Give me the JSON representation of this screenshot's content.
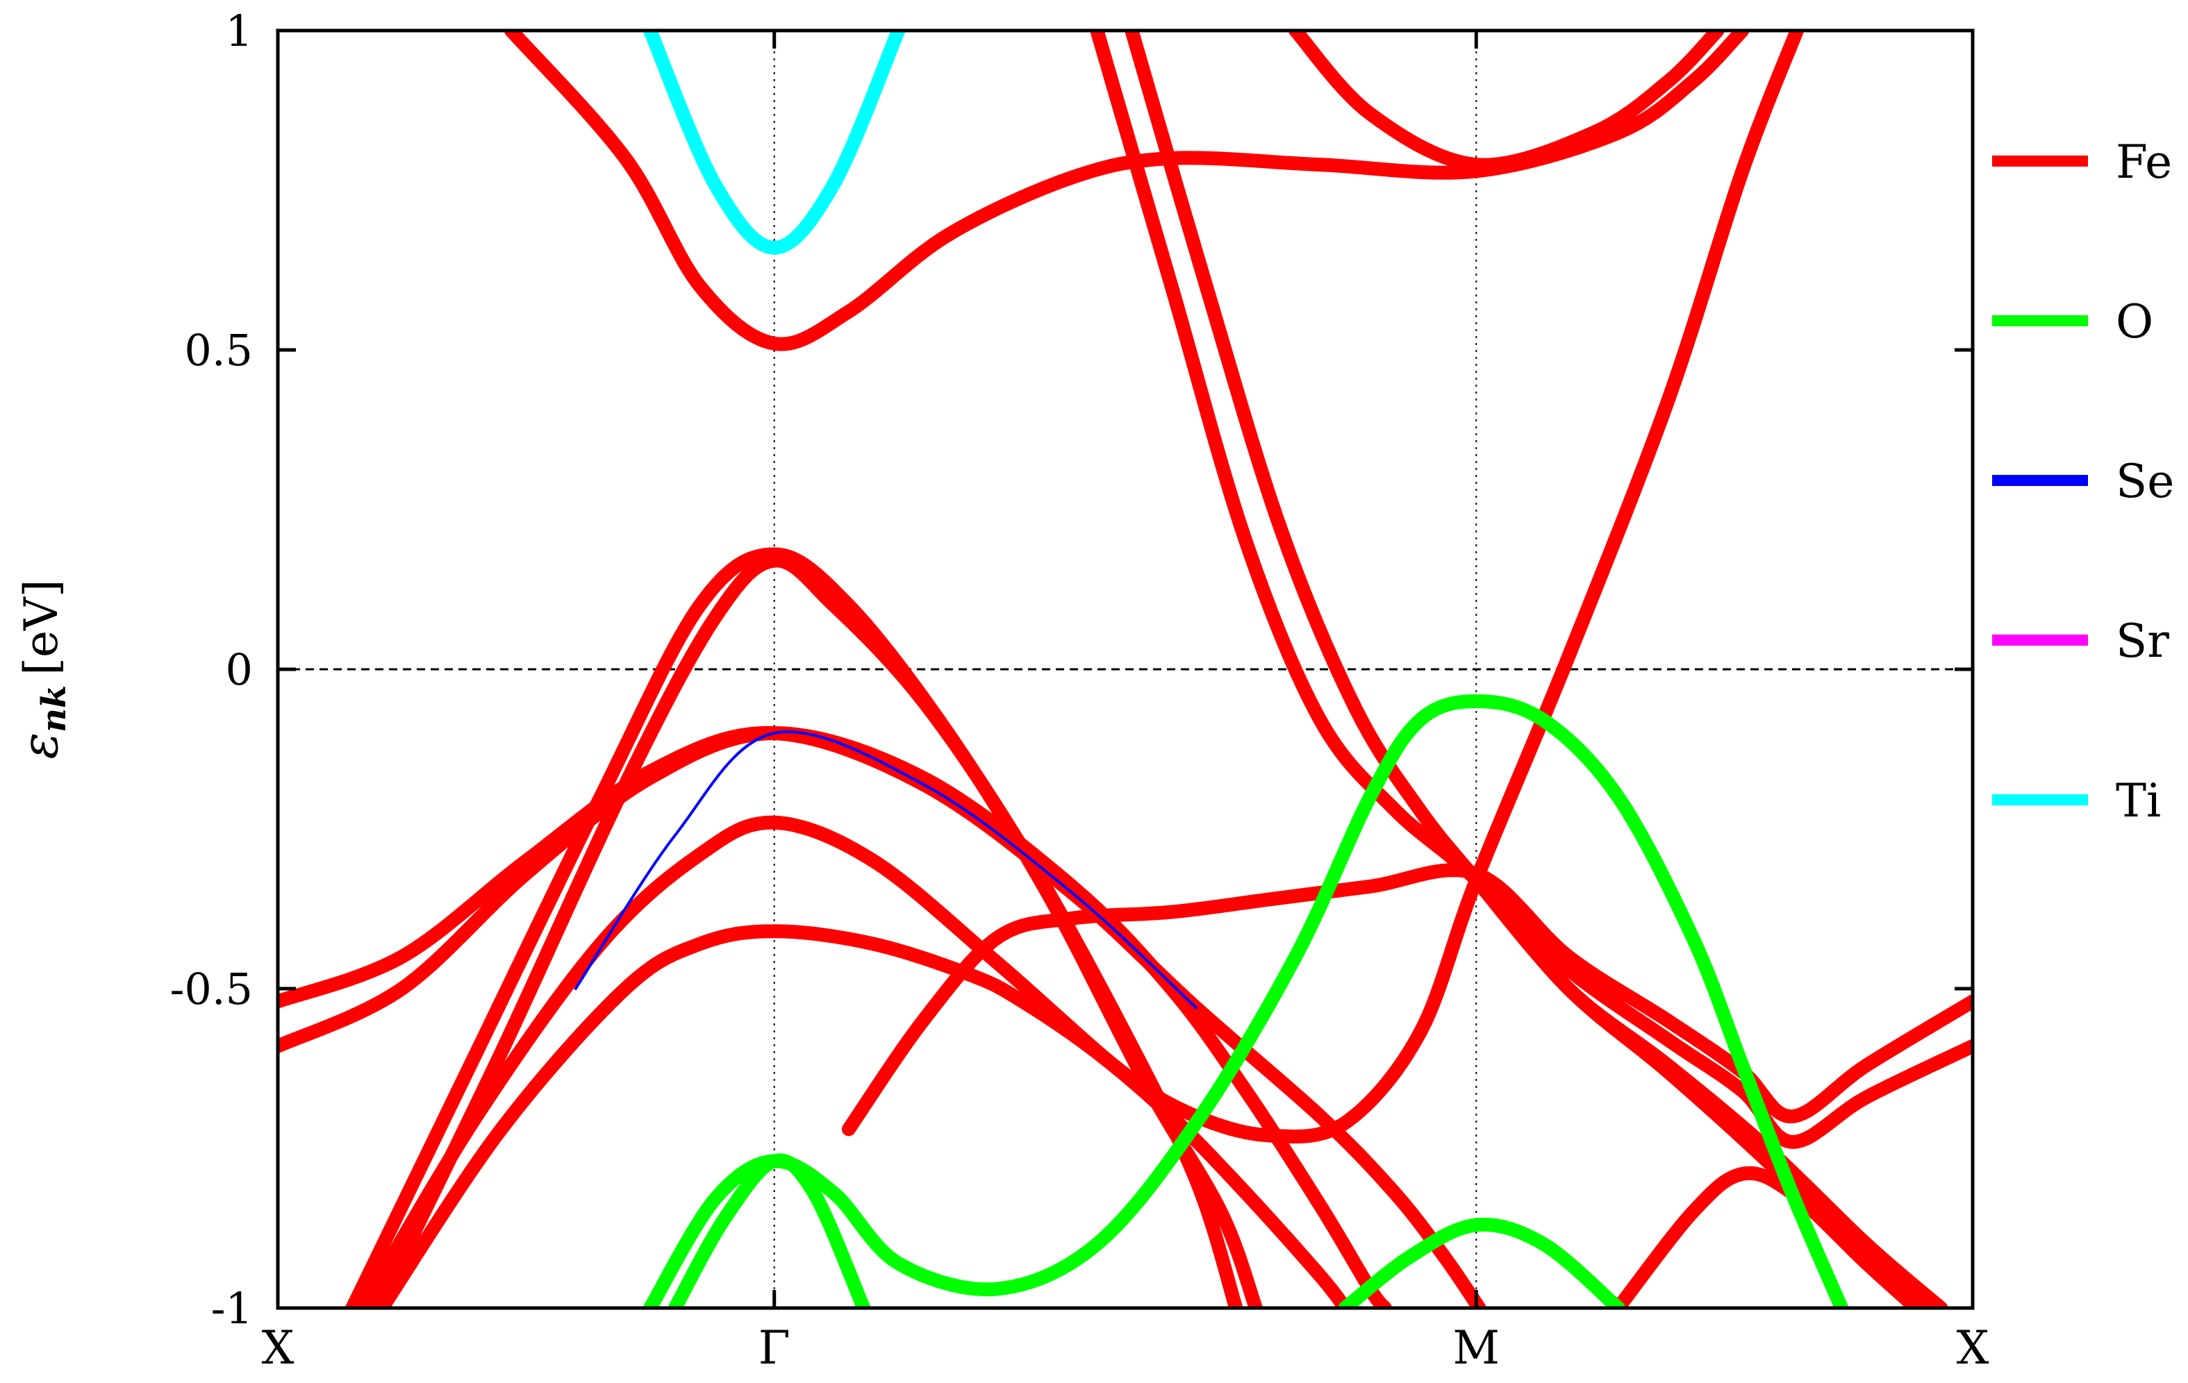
{
  "chart_data": {
    "type": "line",
    "title": "",
    "xlabel": "",
    "ylabel": "ε",
    "ylabel_sub": "nk",
    "ylabel_unit": "[eV]",
    "x_path_ticks": [
      {
        "label": "X",
        "x": 0
      },
      {
        "label": "Γ",
        "x": 1
      },
      {
        "label": "M",
        "x": 2.414
      },
      {
        "label": "X",
        "x": 3.414
      }
    ],
    "xlim": [
      0,
      3.414
    ],
    "ylim": [
      -1,
      1
    ],
    "yticks": [
      -1,
      -0.5,
      0,
      0.5,
      1
    ],
    "ytick_labels": [
      "-1",
      "-0.5",
      "0",
      "0.5",
      "1"
    ],
    "fermi_level": 0,
    "grid": "dotted vertical lines at high-symmetry points",
    "legend_position": "right, outside plot",
    "legend": [
      {
        "name": "Fe",
        "color": "#ff0000"
      },
      {
        "name": "O",
        "color": "#00ff00"
      },
      {
        "name": "Se",
        "color": "#0000ff"
      },
      {
        "name": "Sr",
        "color": "#ff00ff"
      },
      {
        "name": "Ti",
        "color": "#00ffff"
      }
    ],
    "series": [
      {
        "orbital": "Fe",
        "color": "#ff0000",
        "points": [
          [
            0,
            -0.52
          ],
          [
            0.25,
            -0.45
          ],
          [
            0.5,
            -0.3
          ],
          [
            0.75,
            -0.16
          ],
          [
            1,
            -0.1
          ],
          [
            1.3,
            -0.18
          ],
          [
            1.6,
            -0.35
          ],
          [
            1.85,
            -0.53
          ],
          [
            2.1,
            -0.7
          ],
          [
            2.25,
            -0.82
          ],
          [
            2.35,
            -0.92
          ],
          [
            2.42,
            -1.0
          ]
        ]
      },
      {
        "orbital": "Fe",
        "color": "#ff0000",
        "points": [
          [
            0,
            -0.59
          ],
          [
            0.25,
            -0.5
          ],
          [
            0.5,
            -0.32
          ],
          [
            0.75,
            -0.17
          ],
          [
            1,
            -0.1
          ],
          [
            1.3,
            -0.17
          ],
          [
            1.6,
            -0.34
          ],
          [
            1.8,
            -0.5
          ],
          [
            1.95,
            -0.66
          ],
          [
            2.1,
            -0.84
          ],
          [
            2.2,
            -0.97
          ],
          [
            2.23,
            -1.0
          ]
        ]
      },
      {
        "orbital": "Fe",
        "color": "#ff0000",
        "points": [
          [
            0.15,
            -1.0
          ],
          [
            0.4,
            -0.6
          ],
          [
            0.65,
            -0.2
          ],
          [
            0.85,
            0.1
          ],
          [
            1,
            0.18
          ],
          [
            1.15,
            0.1
          ],
          [
            1.35,
            -0.1
          ],
          [
            1.55,
            -0.35
          ],
          [
            1.75,
            -0.65
          ],
          [
            1.9,
            -0.85
          ],
          [
            1.97,
            -1.0
          ]
        ]
      },
      {
        "orbital": "Fe",
        "color": "#ff0000",
        "points": [
          [
            0.2,
            -1.0
          ],
          [
            0.45,
            -0.6
          ],
          [
            0.7,
            -0.18
          ],
          [
            0.88,
            0.08
          ],
          [
            1,
            0.17
          ],
          [
            1.12,
            0.1
          ],
          [
            1.3,
            -0.05
          ],
          [
            1.5,
            -0.28
          ],
          [
            1.7,
            -0.56
          ],
          [
            1.85,
            -0.8
          ],
          [
            1.93,
            -1.0
          ]
        ]
      },
      {
        "orbital": "Fe",
        "color": "#ff0000",
        "points": [
          [
            0.17,
            -1.0
          ],
          [
            0.4,
            -0.7
          ],
          [
            0.65,
            -0.43
          ],
          [
            0.85,
            -0.29
          ],
          [
            1,
            -0.24
          ],
          [
            1.2,
            -0.3
          ],
          [
            1.45,
            -0.46
          ],
          [
            1.7,
            -0.63
          ],
          [
            1.85,
            -0.7
          ],
          [
            2,
            -0.73
          ],
          [
            2.15,
            -0.71
          ],
          [
            2.3,
            -0.57
          ],
          [
            2.414,
            -0.33
          ],
          [
            2.6,
            0.02
          ],
          [
            2.8,
            0.42
          ],
          [
            2.95,
            0.78
          ],
          [
            3.06,
            1.0
          ]
        ]
      },
      {
        "orbital": "Fe",
        "color": "#ff0000",
        "points": [
          [
            0.21,
            -1.0
          ],
          [
            0.45,
            -0.72
          ],
          [
            0.7,
            -0.5
          ],
          [
            0.85,
            -0.43
          ],
          [
            1,
            -0.41
          ],
          [
            1.2,
            -0.43
          ],
          [
            1.4,
            -0.48
          ],
          [
            1.5,
            -0.52
          ],
          [
            1.65,
            -0.6
          ],
          [
            1.8,
            -0.7
          ],
          [
            1.95,
            -0.82
          ],
          [
            2.1,
            -0.95
          ],
          [
            2.15,
            -1.0
          ]
        ]
      },
      {
        "orbital": "Fe",
        "color": "#ff0000",
        "points": [
          [
            1.15,
            -0.72
          ],
          [
            1.3,
            -0.55
          ],
          [
            1.45,
            -0.42
          ],
          [
            1.6,
            -0.39
          ],
          [
            1.8,
            -0.38
          ],
          [
            2,
            -0.36
          ],
          [
            2.2,
            -0.34
          ],
          [
            2.414,
            -0.32
          ],
          [
            2.6,
            -0.45
          ],
          [
            2.8,
            -0.55
          ],
          [
            2.95,
            -0.63
          ],
          [
            3.05,
            -0.7
          ],
          [
            3.2,
            -0.62
          ],
          [
            3.414,
            -0.52
          ]
        ]
      },
      {
        "orbital": "Fe",
        "color": "#ff0000",
        "points": [
          [
            2.414,
            -0.33
          ],
          [
            2.6,
            -0.47
          ],
          [
            2.8,
            -0.58
          ],
          [
            2.95,
            -0.66
          ],
          [
            3.05,
            -0.74
          ],
          [
            3.2,
            -0.67
          ],
          [
            3.414,
            -0.59
          ]
        ]
      },
      {
        "orbital": "Fe",
        "color": "#ff0000",
        "points": [
          [
            1.65,
            1.0
          ],
          [
            1.8,
            0.6
          ],
          [
            1.95,
            0.2
          ],
          [
            2.1,
            -0.08
          ],
          [
            2.25,
            -0.22
          ],
          [
            2.414,
            -0.33
          ],
          [
            2.6,
            -0.5
          ],
          [
            2.8,
            -0.62
          ],
          [
            3,
            -0.75
          ],
          [
            3.2,
            -0.9
          ],
          [
            3.35,
            -1.0
          ]
        ]
      },
      {
        "orbital": "Fe",
        "color": "#ff0000",
        "points": [
          [
            1.72,
            1.0
          ],
          [
            1.87,
            0.6
          ],
          [
            2.02,
            0.22
          ],
          [
            2.17,
            -0.06
          ],
          [
            2.3,
            -0.22
          ],
          [
            2.414,
            -0.33
          ],
          [
            2.6,
            -0.5
          ],
          [
            2.8,
            -0.63
          ],
          [
            3,
            -0.77
          ],
          [
            3.2,
            -0.92
          ],
          [
            3.32,
            -1.0
          ]
        ]
      },
      {
        "orbital": "Fe",
        "color": "#ff0000",
        "points": [
          [
            0.47,
            1.0
          ],
          [
            0.7,
            0.8
          ],
          [
            0.85,
            0.6
          ],
          [
            1,
            0.51
          ],
          [
            1.15,
            0.56
          ],
          [
            1.35,
            0.68
          ],
          [
            1.6,
            0.77
          ],
          [
            1.8,
            0.8
          ],
          [
            2.1,
            0.79
          ],
          [
            2.414,
            0.78
          ],
          [
            2.7,
            0.84
          ],
          [
            2.85,
            0.92
          ],
          [
            2.95,
            1.0
          ]
        ]
      },
      {
        "orbital": "Fe",
        "color": "#ff0000",
        "points": [
          [
            2.05,
            1.0
          ],
          [
            2.2,
            0.87
          ],
          [
            2.414,
            0.79
          ],
          [
            2.65,
            0.84
          ],
          [
            2.8,
            0.92
          ],
          [
            2.9,
            1.0
          ]
        ]
      },
      {
        "orbital": "Fe",
        "color": "#ff0000",
        "points": [
          [
            2.7,
            -1.0
          ],
          [
            2.85,
            -0.85
          ],
          [
            2.95,
            -0.79
          ],
          [
            3.05,
            -0.82
          ],
          [
            3.2,
            -0.93
          ],
          [
            3.3,
            -1.0
          ]
        ]
      },
      {
        "orbital": "O",
        "color": "#00ff00",
        "points": [
          [
            0.75,
            -1.0
          ],
          [
            0.88,
            -0.83
          ],
          [
            1,
            -0.77
          ],
          [
            1.12,
            -0.82
          ],
          [
            1.25,
            -0.93
          ],
          [
            1.45,
            -0.97
          ],
          [
            1.65,
            -0.9
          ],
          [
            1.85,
            -0.71
          ],
          [
            2.05,
            -0.45
          ],
          [
            2.2,
            -0.2
          ],
          [
            2.3,
            -0.08
          ],
          [
            2.414,
            -0.05
          ],
          [
            2.55,
            -0.08
          ],
          [
            2.7,
            -0.2
          ],
          [
            2.85,
            -0.42
          ],
          [
            2.95,
            -0.62
          ],
          [
            3.05,
            -0.82
          ],
          [
            3.15,
            -1.0
          ]
        ]
      },
      {
        "orbital": "O",
        "color": "#00ff00",
        "points": [
          [
            0.8,
            -1.0
          ],
          [
            0.9,
            -0.86
          ],
          [
            1,
            -0.77
          ],
          [
            1.08,
            -0.82
          ],
          [
            1.18,
            -1.0
          ]
        ]
      },
      {
        "orbital": "O",
        "color": "#00ff00",
        "points": [
          [
            2.15,
            -1.0
          ],
          [
            2.28,
            -0.92
          ],
          [
            2.414,
            -0.87
          ],
          [
            2.55,
            -0.9
          ],
          [
            2.7,
            -1.0
          ]
        ]
      },
      {
        "orbital": "Ti",
        "color": "#00ffff",
        "points": [
          [
            0.75,
            1.0
          ],
          [
            0.88,
            0.76
          ],
          [
            1,
            0.66
          ],
          [
            1.12,
            0.76
          ],
          [
            1.25,
            1.0
          ]
        ]
      },
      {
        "orbital": "Se",
        "color": "#0000ff",
        "points": [
          [
            0.6,
            -0.5
          ],
          [
            0.8,
            -0.26
          ],
          [
            1,
            -0.1
          ],
          [
            1.3,
            -0.18
          ],
          [
            1.6,
            -0.35
          ],
          [
            1.85,
            -0.53
          ]
        ]
      }
    ]
  }
}
